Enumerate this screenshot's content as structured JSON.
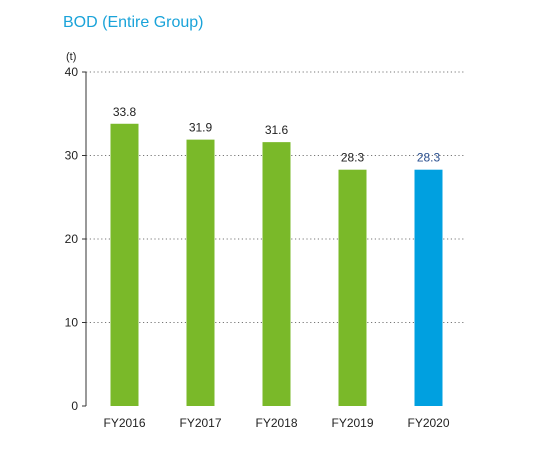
{
  "chart_data": {
    "type": "bar",
    "title": "BOD (Entire Group)",
    "ylabel": "(t)",
    "categories": [
      "FY2016",
      "FY2017",
      "FY2018",
      "FY2019",
      "FY2020"
    ],
    "values": [
      33.8,
      31.9,
      31.6,
      28.3,
      28.3
    ],
    "value_labels": [
      "33.8",
      "31.9",
      "31.6",
      "28.3",
      "28.3"
    ],
    "ylim": [
      0,
      40
    ],
    "yticks": [
      0,
      10,
      20,
      30,
      40
    ],
    "grid": true,
    "colors": {
      "title": "#1aa3d9",
      "bar": "#7ab929",
      "bar_highlight": "#00a0e0",
      "highlight_label": "#2a4f8f",
      "label": "#222222",
      "axis": "#333333",
      "grid": "#777777"
    },
    "highlight_index": 4
  }
}
